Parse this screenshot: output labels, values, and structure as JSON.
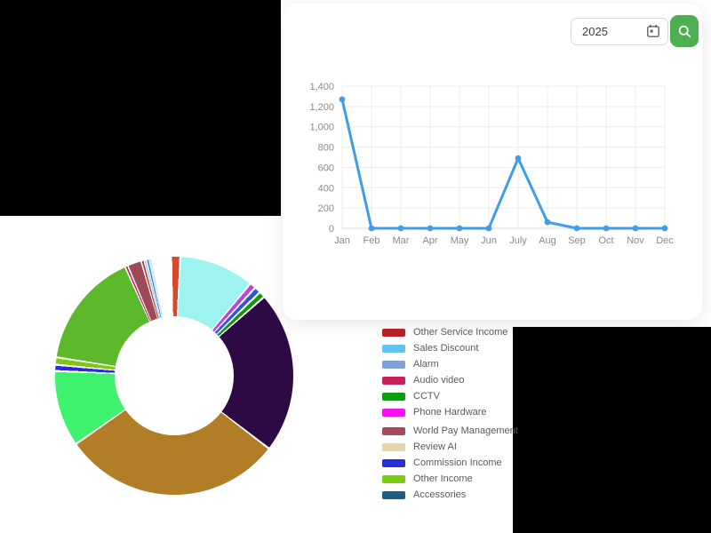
{
  "card": {
    "year_input": {
      "value": "2025"
    }
  },
  "colors": {
    "accent_green": "#4caf50",
    "line_blue": "#3f9ce8",
    "grid": "#ececec",
    "axis_text": "#8a8a8a",
    "background_block": "#000000"
  },
  "chart_data": [
    {
      "type": "line",
      "x": [
        "Jan",
        "Feb",
        "Mar",
        "Apr",
        "May",
        "Jun",
        "July",
        "Aug",
        "Sep",
        "Oct",
        "Nov",
        "Dec"
      ],
      "values": [
        1270,
        0,
        0,
        0,
        0,
        0,
        690,
        60,
        0,
        0,
        0,
        0
      ],
      "ylim": [
        0,
        1400
      ],
      "yticks": [
        0,
        200,
        400,
        600,
        800,
        1000,
        1200,
        1400
      ],
      "ytick_labels": [
        "0",
        "200",
        "400",
        "600",
        "800",
        "1,000",
        "1,200",
        "1,400"
      ],
      "line_color": "#3f9ce8",
      "grid": true,
      "legend_position": "none",
      "title": ""
    },
    {
      "type": "pie",
      "donut": true,
      "start_angle": -1.5,
      "slices": [
        {
          "color": "#d5492f",
          "pct": 1.25
        },
        {
          "color": "#9df3f0",
          "pct": 10.15
        },
        {
          "color": "#ba45d6",
          "pct": 0.85
        },
        {
          "color": "#3053e2",
          "pct": 0.85
        },
        {
          "color": "#189312",
          "pct": 0.85
        },
        {
          "color": "#2e0a45",
          "pct": 21.9
        },
        {
          "color": "#b17e27",
          "pct": 29.9
        },
        {
          "color": "#3ff26d",
          "pct": 10.3
        },
        {
          "color": "#2c2add",
          "pct": 0.85
        },
        {
          "color": "#7ec814",
          "pct": 1.0
        },
        {
          "color": "#5cb92c",
          "pct": 15.8
        },
        {
          "color": "#d81b5e",
          "pct": 0.33
        },
        {
          "color": "#9d4a58",
          "pct": 1.95
        },
        {
          "color": "#c5302b",
          "pct": 0.33
        },
        {
          "color": "#a6dcf2",
          "pct": 0.4
        },
        {
          "color": "#3177de",
          "pct": 0.28
        },
        {
          "color": "#c4eaf7",
          "pct": 0.4
        }
      ]
    }
  ],
  "legend": {
    "groups": [
      [
        {
          "label": "Other Service Income",
          "color": "#b92025"
        },
        {
          "label": "Sales Discount",
          "color": "#5fc3ed"
        },
        {
          "label": "Alarm",
          "color": "#81a0d4"
        },
        {
          "label": "Audio video",
          "color": "#c92056"
        },
        {
          "label": "CCTV",
          "color": "#0f9a13"
        },
        {
          "label": "Phone Hardware",
          "color": "#f312ef"
        }
      ],
      [
        {
          "label": "World Pay Management",
          "color": "#a84a59"
        },
        {
          "label": "Review AI",
          "color": "#e6d5a9"
        },
        {
          "label": "Commission Income",
          "color": "#2b2fdb"
        },
        {
          "label": "Other Income",
          "color": "#7bcb12"
        },
        {
          "label": "Accessories",
          "color": "#1c5f82"
        }
      ]
    ]
  }
}
